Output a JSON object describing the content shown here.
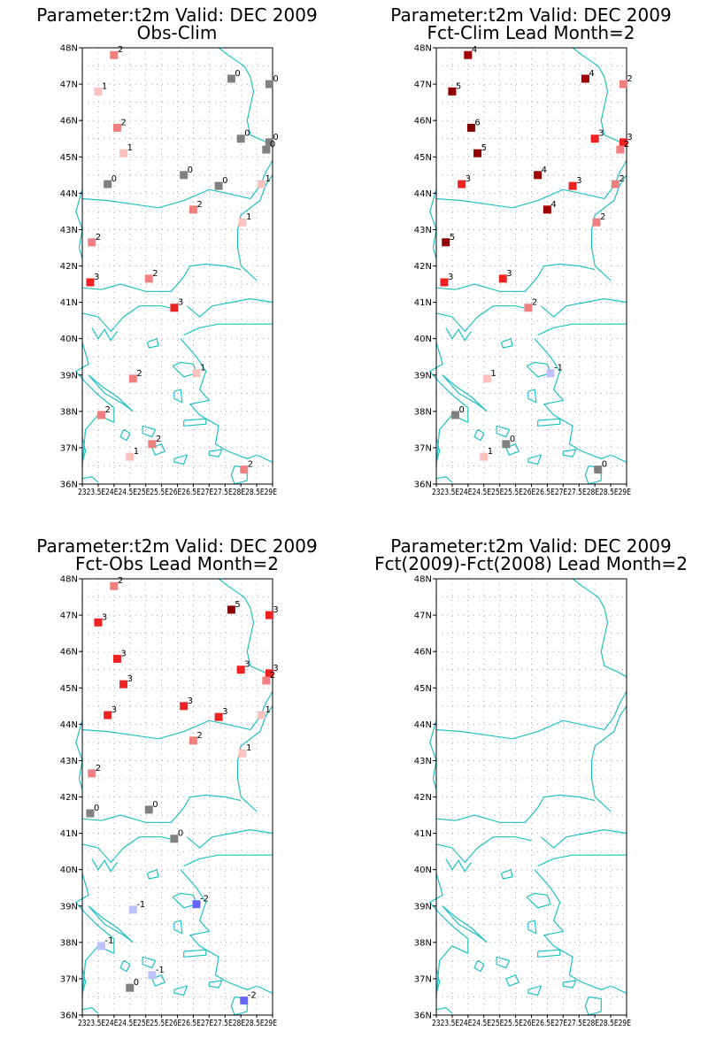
{
  "panels": [
    {
      "id": "obs-clim",
      "title1": "Parameter:t2m Valid: DEC 2009",
      "title2": "Obs-Clim",
      "points": [
        {
          "lon": 24.0,
          "lat": 47.8,
          "v": "2"
        },
        {
          "lon": 23.5,
          "lat": 46.8,
          "v": "1"
        },
        {
          "lon": 24.1,
          "lat": 45.8,
          "v": "2"
        },
        {
          "lon": 24.3,
          "lat": 45.1,
          "v": "1"
        },
        {
          "lon": 23.8,
          "lat": 44.25,
          "v": "0"
        },
        {
          "lon": 26.2,
          "lat": 44.5,
          "v": "0"
        },
        {
          "lon": 27.3,
          "lat": 44.2,
          "v": "0"
        },
        {
          "lon": 26.5,
          "lat": 43.55,
          "v": "2"
        },
        {
          "lon": 27.7,
          "lat": 47.15,
          "v": "0"
        },
        {
          "lon": 28.9,
          "lat": 47.0,
          "v": "0"
        },
        {
          "lon": 28.0,
          "lat": 45.5,
          "v": "0"
        },
        {
          "lon": 28.9,
          "lat": 45.4,
          "v": "0"
        },
        {
          "lon": 28.8,
          "lat": 45.2,
          "v": "0"
        },
        {
          "lon": 28.65,
          "lat": 44.25,
          "v": "1"
        },
        {
          "lon": 28.05,
          "lat": 43.2,
          "v": "1"
        },
        {
          "lon": 23.3,
          "lat": 42.65,
          "v": "2"
        },
        {
          "lon": 23.25,
          "lat": 41.55,
          "v": "3"
        },
        {
          "lon": 25.1,
          "lat": 41.65,
          "v": "2"
        },
        {
          "lon": 25.9,
          "lat": 40.85,
          "v": "3"
        },
        {
          "lon": 24.6,
          "lat": 38.9,
          "v": "2"
        },
        {
          "lon": 26.6,
          "lat": 39.05,
          "v": "1"
        },
        {
          "lon": 23.6,
          "lat": 37.9,
          "v": "2"
        },
        {
          "lon": 25.2,
          "lat": 37.1,
          "v": "2"
        },
        {
          "lon": 24.5,
          "lat": 36.75,
          "v": "1"
        },
        {
          "lon": 28.1,
          "lat": 36.4,
          "v": "2"
        }
      ]
    },
    {
      "id": "fct-clim",
      "title1": "Parameter:t2m Valid: DEC 2009",
      "title2": "Fct-Clim Lead Month=2",
      "points": [
        {
          "lon": 24.0,
          "lat": 47.8,
          "v": "4"
        },
        {
          "lon": 23.5,
          "lat": 46.8,
          "v": "5"
        },
        {
          "lon": 24.1,
          "lat": 45.8,
          "v": "6"
        },
        {
          "lon": 24.3,
          "lat": 45.1,
          "v": "5"
        },
        {
          "lon": 23.8,
          "lat": 44.25,
          "v": "3"
        },
        {
          "lon": 26.2,
          "lat": 44.5,
          "v": "4"
        },
        {
          "lon": 27.3,
          "lat": 44.2,
          "v": "3"
        },
        {
          "lon": 26.5,
          "lat": 43.55,
          "v": "4"
        },
        {
          "lon": 27.7,
          "lat": 47.15,
          "v": "4"
        },
        {
          "lon": 28.9,
          "lat": 47.0,
          "v": "2"
        },
        {
          "lon": 28.0,
          "lat": 45.5,
          "v": "3"
        },
        {
          "lon": 28.9,
          "lat": 45.4,
          "v": "3"
        },
        {
          "lon": 28.8,
          "lat": 45.2,
          "v": "2"
        },
        {
          "lon": 28.65,
          "lat": 44.25,
          "v": "2"
        },
        {
          "lon": 28.05,
          "lat": 43.2,
          "v": "2"
        },
        {
          "lon": 23.3,
          "lat": 42.65,
          "v": "5"
        },
        {
          "lon": 23.25,
          "lat": 41.55,
          "v": "3"
        },
        {
          "lon": 25.1,
          "lat": 41.65,
          "v": "3"
        },
        {
          "lon": 25.9,
          "lat": 40.85,
          "v": "2"
        },
        {
          "lon": 24.6,
          "lat": 38.9,
          "v": "1"
        },
        {
          "lon": 26.6,
          "lat": 39.05,
          "v": "-1"
        },
        {
          "lon": 23.6,
          "lat": 37.9,
          "v": "0"
        },
        {
          "lon": 25.2,
          "lat": 37.1,
          "v": "0"
        },
        {
          "lon": 24.5,
          "lat": 36.75,
          "v": "1"
        },
        {
          "lon": 28.1,
          "lat": 36.4,
          "v": "0"
        }
      ]
    },
    {
      "id": "fct-obs",
      "title1": "Parameter:t2m Valid: DEC 2009",
      "title2": "Fct-Obs Lead Month=2",
      "points": [
        {
          "lon": 24.0,
          "lat": 47.8,
          "v": "2"
        },
        {
          "lon": 23.5,
          "lat": 46.8,
          "v": "3"
        },
        {
          "lon": 24.1,
          "lat": 45.8,
          "v": "3"
        },
        {
          "lon": 24.3,
          "lat": 45.1,
          "v": "3"
        },
        {
          "lon": 23.8,
          "lat": 44.25,
          "v": "3"
        },
        {
          "lon": 26.2,
          "lat": 44.5,
          "v": "3"
        },
        {
          "lon": 27.3,
          "lat": 44.2,
          "v": "3"
        },
        {
          "lon": 26.5,
          "lat": 43.55,
          "v": "2"
        },
        {
          "lon": 27.7,
          "lat": 47.15,
          "v": "5"
        },
        {
          "lon": 28.9,
          "lat": 47.0,
          "v": "3"
        },
        {
          "lon": 28.0,
          "lat": 45.5,
          "v": "3"
        },
        {
          "lon": 28.9,
          "lat": 45.4,
          "v": "3"
        },
        {
          "lon": 28.8,
          "lat": 45.2,
          "v": "2"
        },
        {
          "lon": 28.65,
          "lat": 44.25,
          "v": "1"
        },
        {
          "lon": 28.05,
          "lat": 43.2,
          "v": "1"
        },
        {
          "lon": 23.3,
          "lat": 42.65,
          "v": "2"
        },
        {
          "lon": 23.25,
          "lat": 41.55,
          "v": "0"
        },
        {
          "lon": 25.1,
          "lat": 41.65,
          "v": "0"
        },
        {
          "lon": 25.9,
          "lat": 40.85,
          "v": "0"
        },
        {
          "lon": 24.6,
          "lat": 38.9,
          "v": "-1"
        },
        {
          "lon": 26.6,
          "lat": 39.05,
          "v": "-2"
        },
        {
          "lon": 23.6,
          "lat": 37.9,
          "v": "-1"
        },
        {
          "lon": 25.2,
          "lat": 37.1,
          "v": "-1"
        },
        {
          "lon": 24.5,
          "lat": 36.75,
          "v": "0"
        },
        {
          "lon": 28.1,
          "lat": 36.4,
          "v": "-2"
        }
      ]
    },
    {
      "id": "fct-diff",
      "title1": "Parameter:t2m Valid: DEC 2009",
      "title2": "Fct(2009)-Fct(2008) Lead Month=2",
      "points": []
    }
  ],
  "axis": {
    "lat_labels": [
      "48N",
      "47N",
      "46N",
      "45N",
      "44N",
      "43N",
      "42N",
      "41N",
      "40N",
      "39N",
      "38N",
      "37N",
      "36N"
    ],
    "lon_labels": [
      "23E",
      "23.5E",
      "24E",
      "24.5E",
      "25E",
      "25.5E",
      "26E",
      "26.5E",
      "27E",
      "27.5E",
      "28E",
      "28.5E",
      "29E"
    ],
    "lon_label_text": "2323.5E24E24.5E25E25.5E26E26.5E27E27.5E28E28.5E29E"
  },
  "colors": {
    "coast": "#22c1c1",
    "grid": "#999999",
    "neg2": "#6666ff",
    "neg1": "#c0c0ff",
    "zero": "#808080",
    "pos1": "#ffc0c0",
    "pos2": "#f08080",
    "pos3": "#ee2222",
    "pos4": "#a00000",
    "pos5": "#900000",
    "pos6": "#800000"
  }
}
